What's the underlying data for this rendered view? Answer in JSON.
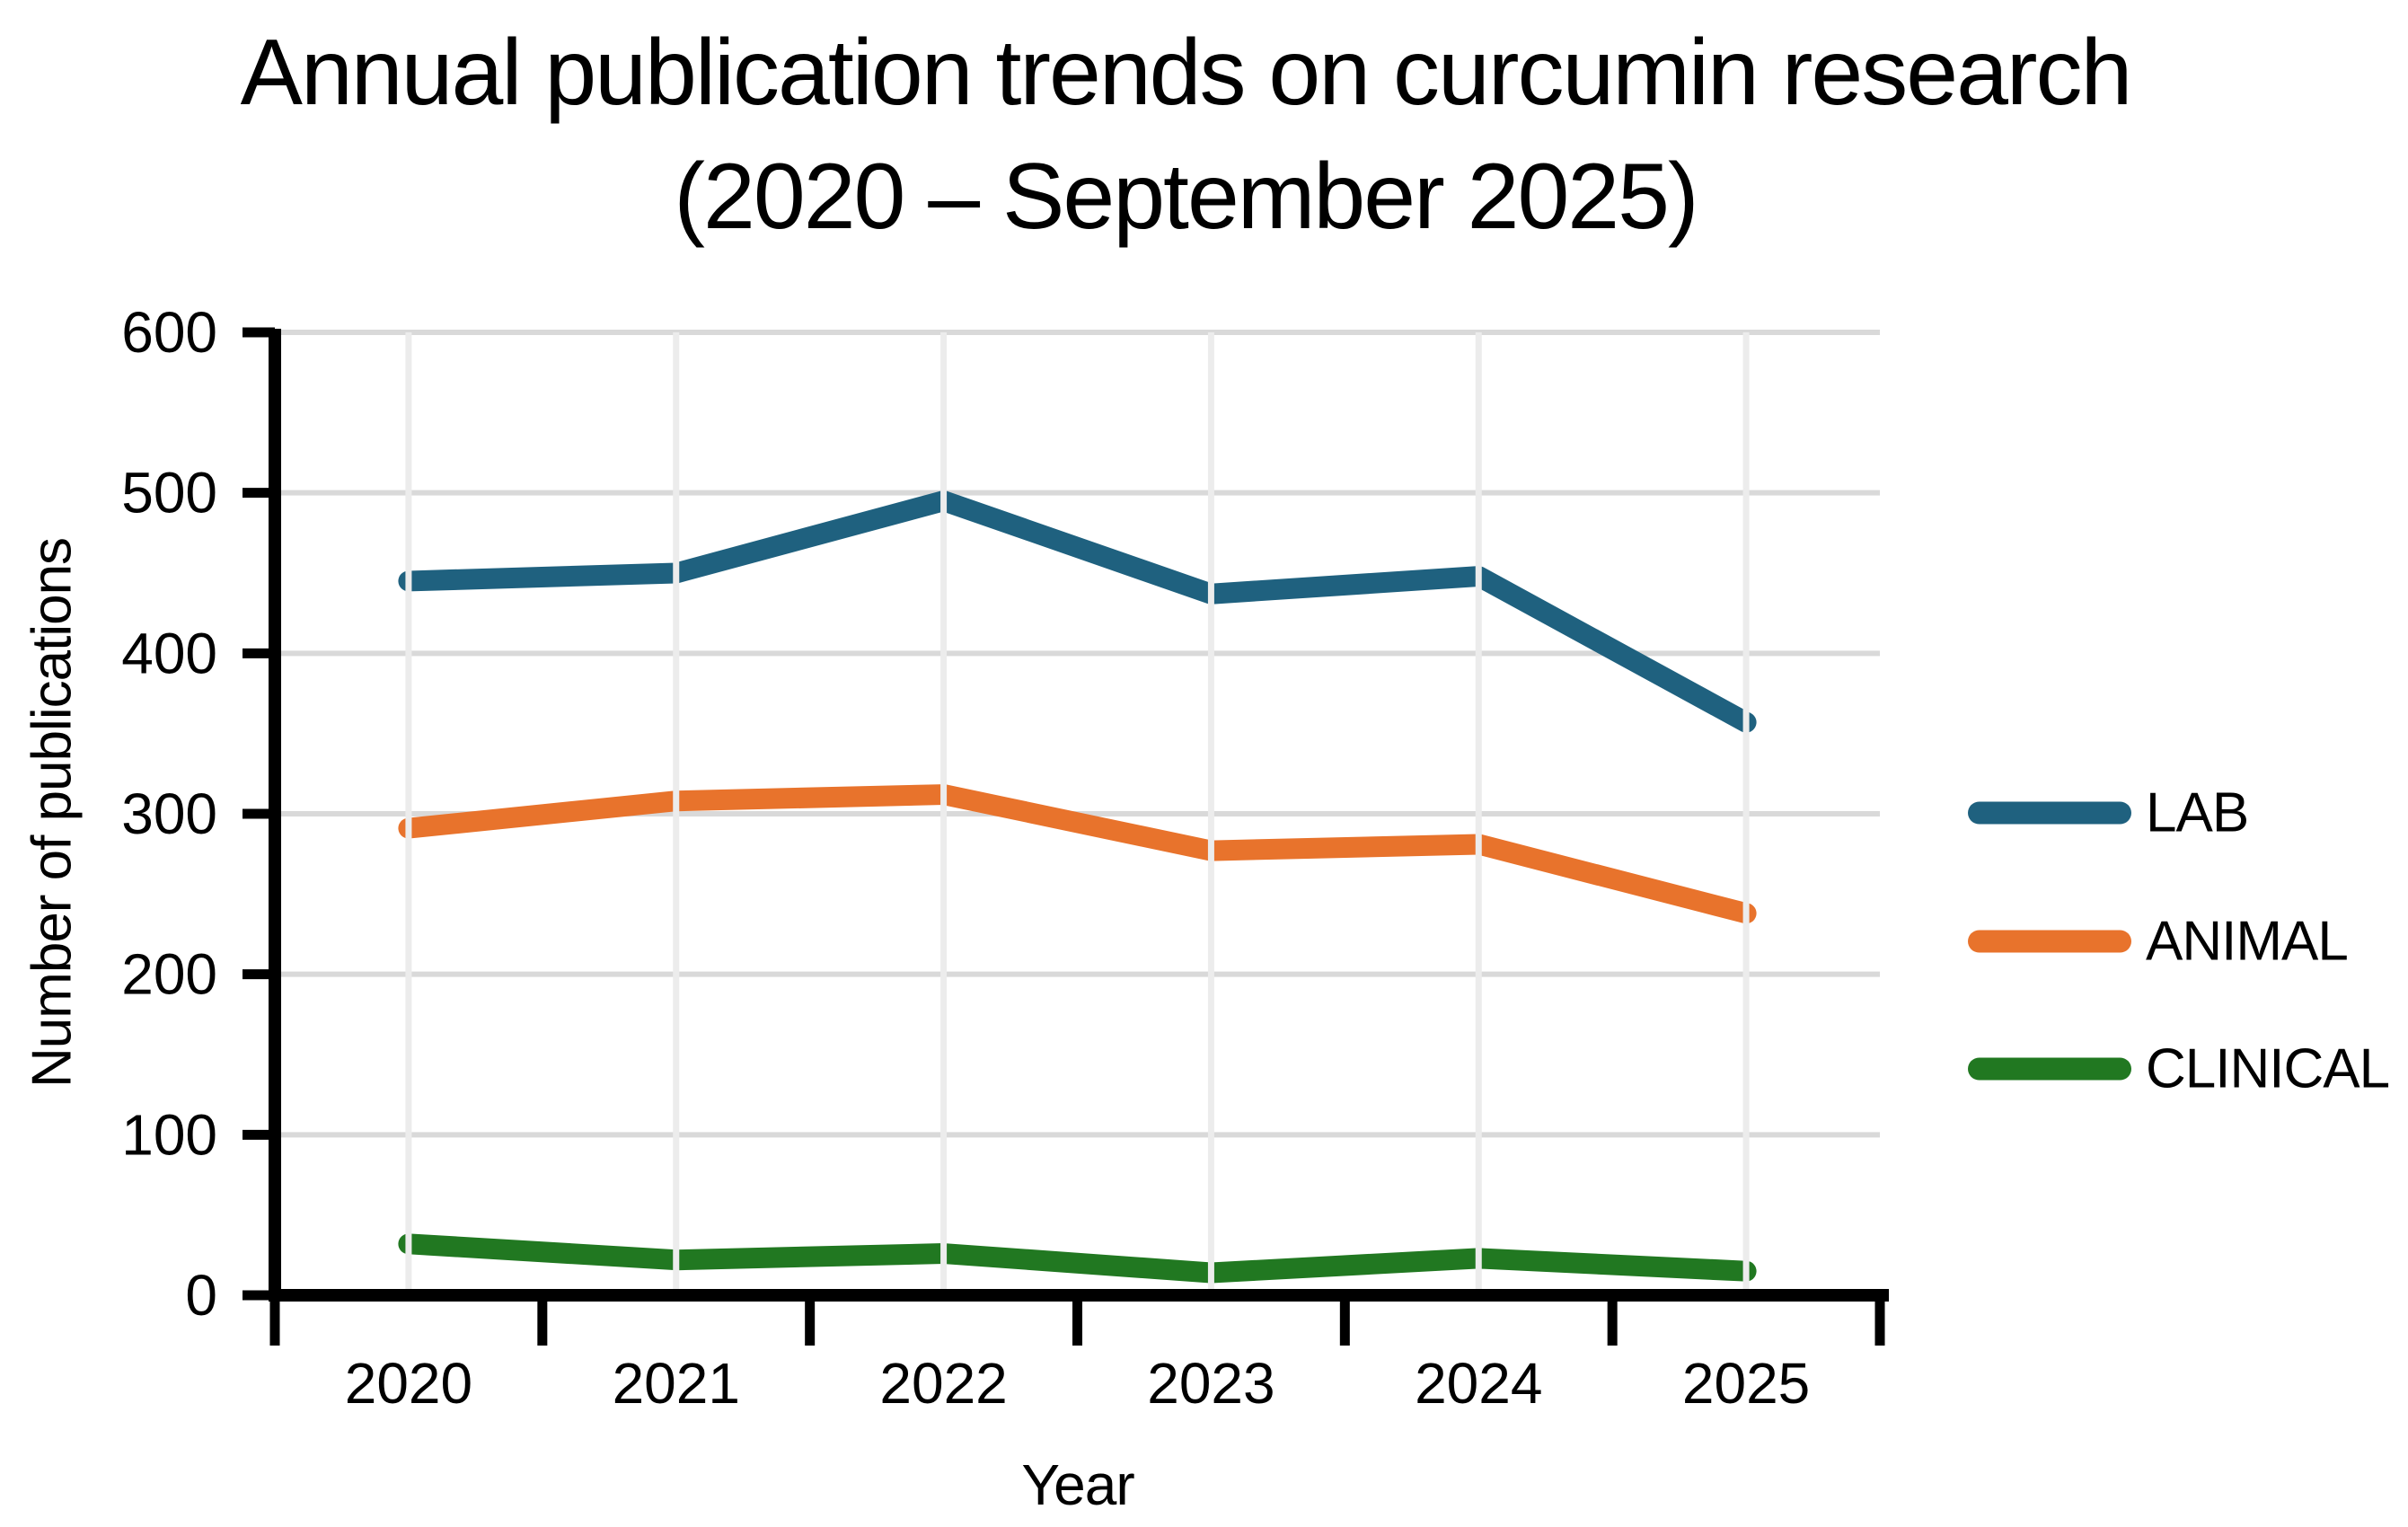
{
  "title": {
    "line1": "Annual publication trends on curcumin research",
    "line2": "(2020 – September 2025)"
  },
  "chart_data": {
    "type": "line",
    "categories": [
      "2020",
      "2021",
      "2022",
      "2023",
      "2024",
      "2025"
    ],
    "series": [
      {
        "name": "LAB",
        "color": "#1F617F",
        "values": [
          445,
          450,
          495,
          437,
          448,
          357
        ]
      },
      {
        "name": "ANIMAL",
        "color": "#E8732C",
        "values": [
          291,
          308,
          312,
          277,
          281,
          238
        ]
      },
      {
        "name": "CLINICAL",
        "color": "#217821",
        "values": [
          32,
          22,
          26,
          14,
          23,
          15
        ]
      }
    ],
    "xlabel": "Year",
    "ylabel": "Number of publications",
    "ylim": [
      0,
      600
    ],
    "ytick_step": 100,
    "yticks": [
      "0",
      "100",
      "200",
      "300",
      "400",
      "500",
      "600"
    ],
    "grid": true,
    "legend_position": "right"
  },
  "colors": {
    "background": "#FFFFFF",
    "text": "#000000",
    "axis": "#000000",
    "gridline_horizontal": "#D9D9D9",
    "gridline_vertical": "#ECECEC"
  }
}
